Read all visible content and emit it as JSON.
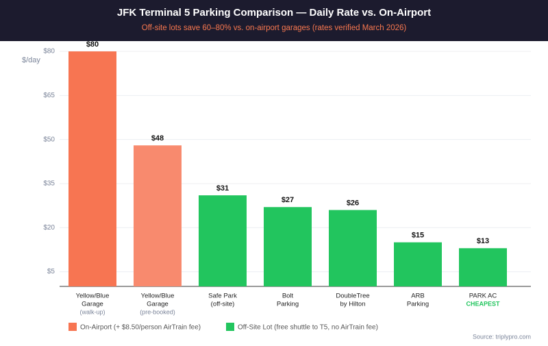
{
  "chart_data": {
    "type": "bar",
    "title": "JFK Terminal 5 Parking Comparison — Daily Rate vs. On-Airport",
    "subtitle": "Off-site lots save 60–80% vs. on-airport garages (rates verified March 2026)",
    "y_label": "$/day",
    "categories": [
      [
        "Yellow/Blue",
        "Garage"
      ],
      [
        "Yellow/Blue",
        "Garage"
      ],
      [
        "Safe Park",
        "(off-site)"
      ],
      [
        "Bolt",
        "Parking"
      ],
      [
        "DoubleTree",
        "by Hilton"
      ],
      [
        "ARB",
        "Parking"
      ],
      [
        "PARK AC"
      ]
    ],
    "notes": [
      "(walk-up)",
      "(pre-booked)",
      null,
      null,
      null,
      null,
      "CHEAPEST"
    ],
    "values": [
      80,
      48,
      31,
      27,
      26,
      15,
      13
    ],
    "value_labels": [
      "$80",
      "$48",
      "$31",
      "$27",
      "$26",
      "$15",
      "$13"
    ],
    "colors": [
      "#f77552",
      "#f88a6e",
      "#22c55e",
      "#22c55e",
      "#22c55e",
      "#22c55e",
      "#22c55e"
    ],
    "ylim": [
      0,
      80
    ],
    "yticks": [
      {
        "value": 80,
        "label": "$80"
      },
      {
        "value": 65,
        "label": "$65"
      },
      {
        "value": 50,
        "label": "$50"
      },
      {
        "value": 35,
        "label": "$35"
      },
      {
        "value": 20,
        "label": "$20"
      },
      {
        "value": 5,
        "label": "$5"
      }
    ],
    "grid": true,
    "legend": [
      {
        "name": "On-Airport (+ $8.50/person AirTrain fee)",
        "color": "#f77552"
      },
      {
        "name": "Off-Site Lot (free shuttle to T5, no AirTrain fee)",
        "color": "#22c55e"
      }
    ],
    "source": "Source: triplypro.com"
  }
}
